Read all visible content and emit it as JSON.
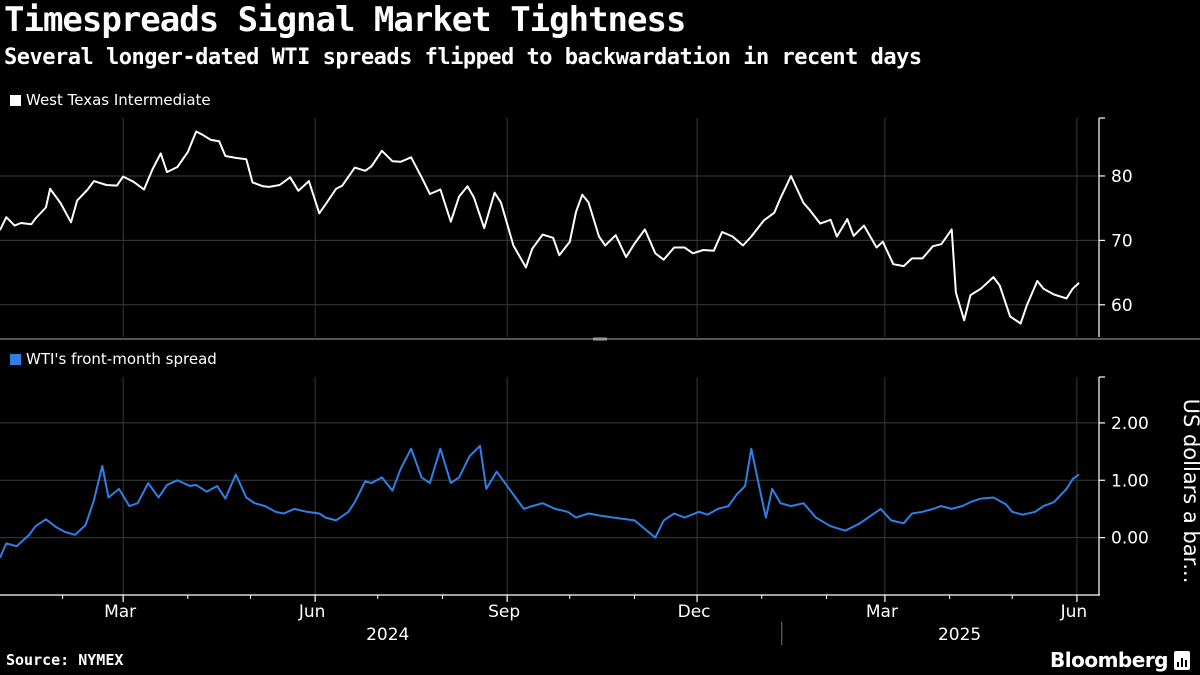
{
  "title": "Timespreads Signal Market Tightness",
  "subtitle": "Several longer-dated WTI spreads flipped to backwardation in recent days",
  "source": "Source: NYMEX",
  "brand": "Bloomberg",
  "colors": {
    "background": "#000000",
    "wti": "#ffffff",
    "spread": "#2f80e6",
    "grid": "#3a3a3a"
  },
  "chart_data": [
    {
      "type": "line",
      "name": "top-panel",
      "legend": "West Texas Intermediate",
      "ylabel": "",
      "ylim": [
        55,
        89
      ],
      "yticks": [
        60,
        70,
        80
      ],
      "ytick_labels": [
        "60",
        "70",
        "80"
      ],
      "x_start": "2024-01-02",
      "x_end": "2025-06-02",
      "series": [
        {
          "name": "West Texas Intermediate",
          "points": [
            [
              "2024-01-02",
              71.6
            ],
            [
              "2024-01-05",
              73.6
            ],
            [
              "2024-01-09",
              72.3
            ],
            [
              "2024-01-12",
              72.7
            ],
            [
              "2024-01-17",
              72.5
            ],
            [
              "2024-01-19",
              73.4
            ],
            [
              "2024-01-24",
              75.1
            ],
            [
              "2024-01-26",
              78.0
            ],
            [
              "2024-01-31",
              75.8
            ],
            [
              "2024-02-05",
              72.8
            ],
            [
              "2024-02-08",
              76.2
            ],
            [
              "2024-02-13",
              77.9
            ],
            [
              "2024-02-16",
              79.2
            ],
            [
              "2024-02-22",
              78.6
            ],
            [
              "2024-02-27",
              78.5
            ],
            [
              "2024-03-01",
              79.9
            ],
            [
              "2024-03-06",
              79.1
            ],
            [
              "2024-03-11",
              77.9
            ],
            [
              "2024-03-15",
              81.0
            ],
            [
              "2024-03-19",
              83.5
            ],
            [
              "2024-03-22",
              80.6
            ],
            [
              "2024-03-27",
              81.4
            ],
            [
              "2024-04-01",
              83.7
            ],
            [
              "2024-04-05",
              86.9
            ],
            [
              "2024-04-08",
              86.4
            ],
            [
              "2024-04-12",
              85.6
            ],
            [
              "2024-04-16",
              85.4
            ],
            [
              "2024-04-19",
              83.1
            ],
            [
              "2024-04-24",
              82.8
            ],
            [
              "2024-04-29",
              82.6
            ],
            [
              "2024-05-02",
              79.0
            ],
            [
              "2024-05-07",
              78.4
            ],
            [
              "2024-05-10",
              78.3
            ],
            [
              "2024-05-15",
              78.6
            ],
            [
              "2024-05-20",
              79.8
            ],
            [
              "2024-05-24",
              77.7
            ],
            [
              "2024-05-29",
              79.2
            ],
            [
              "2024-06-03",
              74.2
            ],
            [
              "2024-06-06",
              75.6
            ],
            [
              "2024-06-11",
              78.0
            ],
            [
              "2024-06-14",
              78.5
            ],
            [
              "2024-06-20",
              81.3
            ],
            [
              "2024-06-25",
              80.8
            ],
            [
              "2024-06-28",
              81.5
            ],
            [
              "2024-07-03",
              83.9
            ],
            [
              "2024-07-08",
              82.3
            ],
            [
              "2024-07-12",
              82.2
            ],
            [
              "2024-07-17",
              82.9
            ],
            [
              "2024-07-22",
              79.8
            ],
            [
              "2024-07-26",
              77.2
            ],
            [
              "2024-07-31",
              77.9
            ],
            [
              "2024-08-05",
              72.9
            ],
            [
              "2024-08-09",
              76.8
            ],
            [
              "2024-08-13",
              78.4
            ],
            [
              "2024-08-16",
              76.7
            ],
            [
              "2024-08-21",
              71.9
            ],
            [
              "2024-08-26",
              77.4
            ],
            [
              "2024-08-29",
              75.9
            ],
            [
              "2024-09-04",
              69.2
            ],
            [
              "2024-09-10",
              65.8
            ],
            [
              "2024-09-13",
              68.7
            ],
            [
              "2024-09-18",
              70.9
            ],
            [
              "2024-09-23",
              70.4
            ],
            [
              "2024-09-26",
              67.7
            ],
            [
              "2024-10-01",
              69.8
            ],
            [
              "2024-10-04",
              74.4
            ],
            [
              "2024-10-07",
              77.1
            ],
            [
              "2024-10-10",
              75.9
            ],
            [
              "2024-10-15",
              70.6
            ],
            [
              "2024-10-18",
              69.2
            ],
            [
              "2024-10-23",
              70.8
            ],
            [
              "2024-10-28",
              67.4
            ],
            [
              "2024-11-01",
              69.5
            ],
            [
              "2024-11-06",
              71.7
            ],
            [
              "2024-11-11",
              68.0
            ],
            [
              "2024-11-15",
              67.0
            ],
            [
              "2024-11-20",
              68.9
            ],
            [
              "2024-11-25",
              68.9
            ],
            [
              "2024-11-29",
              68.0
            ],
            [
              "2024-12-04",
              68.5
            ],
            [
              "2024-12-09",
              68.4
            ],
            [
              "2024-12-13",
              71.3
            ],
            [
              "2024-12-18",
              70.6
            ],
            [
              "2024-12-23",
              69.2
            ],
            [
              "2024-12-27",
              70.6
            ],
            [
              "2025-01-02",
              73.1
            ],
            [
              "2025-01-07",
              74.3
            ],
            [
              "2025-01-10",
              76.6
            ],
            [
              "2025-01-15",
              80.0
            ],
            [
              "2025-01-21",
              75.8
            ],
            [
              "2025-01-24",
              74.7
            ],
            [
              "2025-01-29",
              72.6
            ],
            [
              "2025-02-03",
              73.2
            ],
            [
              "2025-02-06",
              70.6
            ],
            [
              "2025-02-11",
              73.3
            ],
            [
              "2025-02-14",
              70.7
            ],
            [
              "2025-02-19",
              72.3
            ],
            [
              "2025-02-25",
              68.9
            ],
            [
              "2025-02-28",
              69.8
            ],
            [
              "2025-03-05",
              66.3
            ],
            [
              "2025-03-10",
              66.0
            ],
            [
              "2025-03-14",
              67.2
            ],
            [
              "2025-03-19",
              67.2
            ],
            [
              "2025-03-24",
              69.1
            ],
            [
              "2025-03-28",
              69.4
            ],
            [
              "2025-04-02",
              71.7
            ],
            [
              "2025-04-04",
              61.9
            ],
            [
              "2025-04-08",
              57.6
            ],
            [
              "2025-04-11",
              61.5
            ],
            [
              "2025-04-16",
              62.5
            ],
            [
              "2025-04-22",
              64.3
            ],
            [
              "2025-04-25",
              63.0
            ],
            [
              "2025-04-30",
              58.2
            ],
            [
              "2025-05-05",
              57.1
            ],
            [
              "2025-05-08",
              59.9
            ],
            [
              "2025-05-13",
              63.7
            ],
            [
              "2025-05-16",
              62.5
            ],
            [
              "2025-05-21",
              61.6
            ],
            [
              "2025-05-27",
              61.0
            ],
            [
              "2025-05-30",
              62.5
            ],
            [
              "2025-06-02",
              63.4
            ]
          ]
        }
      ]
    },
    {
      "type": "line",
      "name": "bottom-panel",
      "legend": "WTI's front-month spread",
      "ylabel": "US dollars a bar...",
      "ylim": [
        -1.0,
        2.8
      ],
      "yticks": [
        0,
        1,
        2
      ],
      "ytick_labels": [
        "0.00",
        "1.00",
        "2.00"
      ],
      "x_start": "2024-01-02",
      "x_end": "2025-06-02",
      "series": [
        {
          "name": "WTI's front-month spread",
          "points": [
            [
              "2024-01-02",
              -0.35
            ],
            [
              "2024-01-05",
              -0.1
            ],
            [
              "2024-01-10",
              -0.15
            ],
            [
              "2024-01-16",
              0.05
            ],
            [
              "2024-01-19",
              0.2
            ],
            [
              "2024-01-24",
              0.32
            ],
            [
              "2024-01-29",
              0.18
            ],
            [
              "2024-02-02",
              0.1
            ],
            [
              "2024-02-07",
              0.05
            ],
            [
              "2024-02-12",
              0.22
            ],
            [
              "2024-02-16",
              0.65
            ],
            [
              "2024-02-20",
              1.25
            ],
            [
              "2024-02-23",
              0.7
            ],
            [
              "2024-02-28",
              0.85
            ],
            [
              "2024-03-04",
              0.55
            ],
            [
              "2024-03-08",
              0.6
            ],
            [
              "2024-03-13",
              0.95
            ],
            [
              "2024-03-18",
              0.7
            ],
            [
              "2024-03-22",
              0.92
            ],
            [
              "2024-03-27",
              1.0
            ],
            [
              "2024-04-02",
              0.9
            ],
            [
              "2024-04-05",
              0.92
            ],
            [
              "2024-04-10",
              0.8
            ],
            [
              "2024-04-15",
              0.9
            ],
            [
              "2024-04-19",
              0.68
            ],
            [
              "2024-04-24",
              1.1
            ],
            [
              "2024-04-29",
              0.7
            ],
            [
              "2024-05-03",
              0.6
            ],
            [
              "2024-05-08",
              0.55
            ],
            [
              "2024-05-13",
              0.45
            ],
            [
              "2024-05-17",
              0.42
            ],
            [
              "2024-05-22",
              0.5
            ],
            [
              "2024-05-28",
              0.45
            ],
            [
              "2024-06-03",
              0.42
            ],
            [
              "2024-06-06",
              0.35
            ],
            [
              "2024-06-11",
              0.3
            ],
            [
              "2024-06-17",
              0.45
            ],
            [
              "2024-06-20",
              0.62
            ],
            [
              "2024-06-25",
              0.98
            ],
            [
              "2024-06-28",
              0.95
            ],
            [
              "2024-07-03",
              1.05
            ],
            [
              "2024-07-08",
              0.82
            ],
            [
              "2024-07-12",
              1.2
            ],
            [
              "2024-07-17",
              1.55
            ],
            [
              "2024-07-22",
              1.05
            ],
            [
              "2024-07-26",
              0.95
            ],
            [
              "2024-07-31",
              1.55
            ],
            [
              "2024-08-05",
              0.95
            ],
            [
              "2024-08-09",
              1.05
            ],
            [
              "2024-08-14",
              1.42
            ],
            [
              "2024-08-19",
              1.6
            ],
            [
              "2024-08-22",
              0.85
            ],
            [
              "2024-08-27",
              1.15
            ],
            [
              "2024-08-30",
              1.0
            ],
            [
              "2024-09-04",
              0.75
            ],
            [
              "2024-09-09",
              0.5
            ],
            [
              "2024-09-13",
              0.55
            ],
            [
              "2024-09-18",
              0.6
            ],
            [
              "2024-09-24",
              0.5
            ],
            [
              "2024-09-30",
              0.45
            ],
            [
              "2024-10-04",
              0.35
            ],
            [
              "2024-10-10",
              0.42
            ],
            [
              "2024-10-16",
              0.38
            ],
            [
              "2024-10-22",
              0.35
            ],
            [
              "2024-10-28",
              0.32
            ],
            [
              "2024-11-01",
              0.3
            ],
            [
              "2024-11-06",
              0.15
            ],
            [
              "2024-11-11",
              0.0
            ],
            [
              "2024-11-15",
              0.3
            ],
            [
              "2024-11-20",
              0.42
            ],
            [
              "2024-11-25",
              0.35
            ],
            [
              "2024-12-02",
              0.45
            ],
            [
              "2024-12-06",
              0.4
            ],
            [
              "2024-12-11",
              0.5
            ],
            [
              "2024-12-16",
              0.55
            ],
            [
              "2024-12-20",
              0.75
            ],
            [
              "2024-12-24",
              0.9
            ],
            [
              "2024-12-27",
              1.55
            ],
            [
              "2024-12-31",
              0.85
            ],
            [
              "2025-01-03",
              0.35
            ],
            [
              "2025-01-06",
              0.85
            ],
            [
              "2025-01-10",
              0.6
            ],
            [
              "2025-01-15",
              0.55
            ],
            [
              "2025-01-21",
              0.6
            ],
            [
              "2025-01-27",
              0.35
            ],
            [
              "2025-02-03",
              0.2
            ],
            [
              "2025-02-10",
              0.12
            ],
            [
              "2025-02-17",
              0.25
            ],
            [
              "2025-02-21",
              0.35
            ],
            [
              "2025-02-27",
              0.5
            ],
            [
              "2025-03-04",
              0.3
            ],
            [
              "2025-03-10",
              0.25
            ],
            [
              "2025-03-14",
              0.42
            ],
            [
              "2025-03-19",
              0.45
            ],
            [
              "2025-03-24",
              0.5
            ],
            [
              "2025-03-28",
              0.55
            ],
            [
              "2025-04-02",
              0.5
            ],
            [
              "2025-04-07",
              0.55
            ],
            [
              "2025-04-11",
              0.62
            ],
            [
              "2025-04-16",
              0.68
            ],
            [
              "2025-04-22",
              0.7
            ],
            [
              "2025-04-28",
              0.58
            ],
            [
              "2025-05-01",
              0.45
            ],
            [
              "2025-05-06",
              0.4
            ],
            [
              "2025-05-12",
              0.45
            ],
            [
              "2025-05-16",
              0.55
            ],
            [
              "2025-05-21",
              0.62
            ],
            [
              "2025-05-27",
              0.85
            ],
            [
              "2025-05-30",
              1.02
            ],
            [
              "2025-06-02",
              1.1
            ]
          ]
        }
      ]
    }
  ],
  "x_axis": {
    "month_ticks": [
      {
        "date": "2024-03-01",
        "label": "Mar"
      },
      {
        "date": "2024-06-01",
        "label": "Jun"
      },
      {
        "date": "2024-09-01",
        "label": "Sep"
      },
      {
        "date": "2024-12-01",
        "label": "Dec"
      },
      {
        "date": "2025-03-01",
        "label": "Mar"
      },
      {
        "date": "2025-06-01",
        "label": "Jun"
      }
    ],
    "minor_ticks": [
      "2024-02-01",
      "2024-04-01",
      "2024-05-01",
      "2024-07-01",
      "2024-08-01",
      "2024-10-01",
      "2024-11-01",
      "2025-01-01",
      "2025-02-01",
      "2025-04-01",
      "2025-05-01"
    ],
    "year_labels": [
      {
        "date": "2024-07-01",
        "label": "2024"
      },
      {
        "date": "2025-04-01",
        "label": "2025"
      }
    ],
    "year_divider": "2025-01-01"
  }
}
